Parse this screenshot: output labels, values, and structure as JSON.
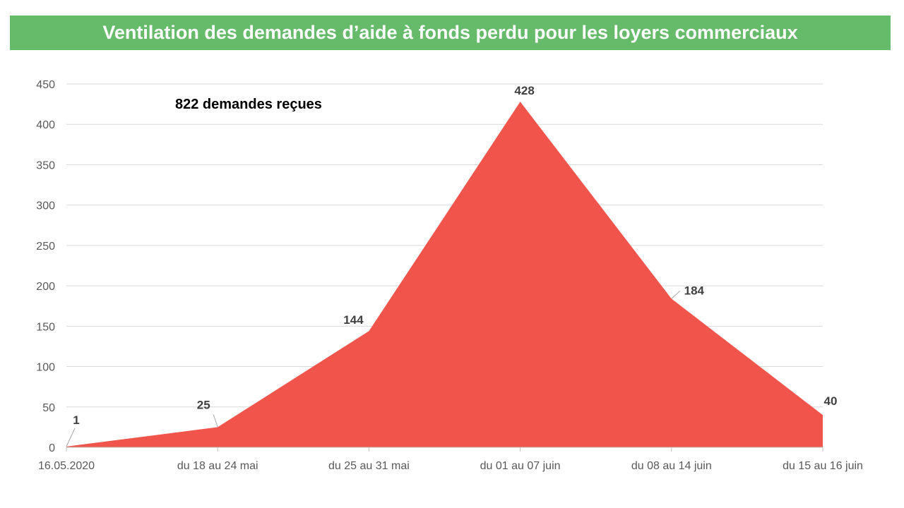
{
  "colors": {
    "banner": "#66bb6a",
    "area": "#f0544b",
    "grid": "#d9d9d9",
    "tick_text": "#595959",
    "label_text": "#404040"
  },
  "chart_data": {
    "type": "area",
    "title": "Ventilation des demandes d’aide à fonds perdu pour les loyers commerciaux",
    "annotation": "822 demandes reçues",
    "categories": [
      "16.05.2020",
      "du 18 au 24 mai",
      "du 25 au 31 mai",
      "du 01 au 07 juin",
      "du 08 au 14 juin",
      "du 15 au 16 juin"
    ],
    "values": [
      1,
      25,
      144,
      428,
      184,
      40
    ],
    "data_labels": [
      "1",
      "25",
      "144",
      "428",
      "184",
      "40"
    ],
    "ylim": [
      0,
      450
    ],
    "yticks": [
      "0",
      "50",
      "100",
      "150",
      "200",
      "250",
      "300",
      "350",
      "400",
      "450"
    ],
    "grid": true,
    "legend": "none"
  }
}
